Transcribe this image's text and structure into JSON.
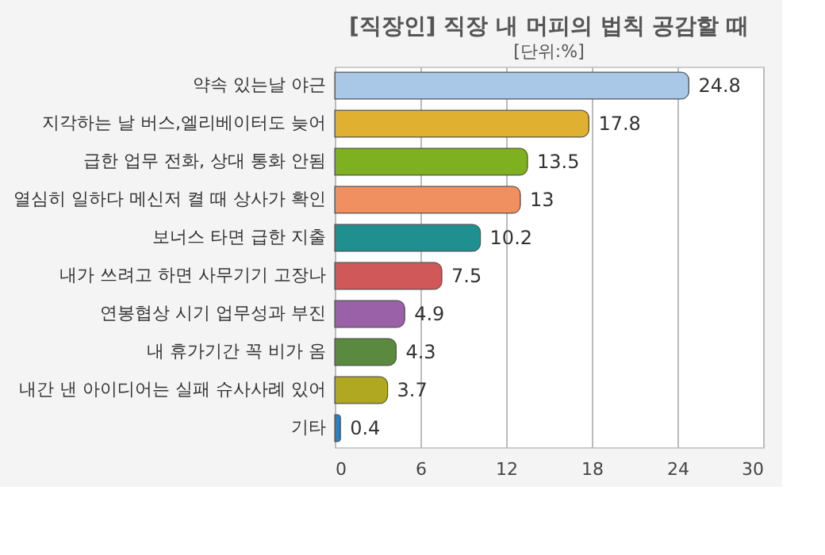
{
  "chart_data": {
    "type": "bar",
    "orientation": "horizontal",
    "title": "[직장인] 직장 내 머피의 법칙 공감할 때",
    "subtitle": "[단위:%]",
    "categories": [
      "약속 있는날 야근",
      "지각하는 날 버스,엘리베이터도 늦어",
      "급한 업무 전화, 상대 통화 안됨",
      "열심히 일하다 메신저 켤 때 상사가 확인",
      "보너스 타면 급한 지출",
      "내가 쓰려고 하면 사무기기 고장나",
      "연봉협상 시기 업무성과 부진",
      "내 휴가기간 꼭 비가 옴",
      "내간 낸 아이디어는 실패 슈사사례 있어",
      "기타"
    ],
    "values": [
      24.8,
      17.8,
      13.5,
      13,
      10.2,
      7.5,
      4.9,
      4.3,
      3.7,
      0.4
    ],
    "colors": [
      "#a9c8e8",
      "#e0b030",
      "#7fb020",
      "#f09060",
      "#208f90",
      "#d05858",
      "#9a60a8",
      "#5a8a40",
      "#b0a820",
      "#2a80c0"
    ],
    "xlim": [
      0,
      30
    ],
    "xticks": [
      0,
      6,
      12,
      18,
      24,
      30
    ],
    "grid": "x",
    "data_labels": true
  }
}
